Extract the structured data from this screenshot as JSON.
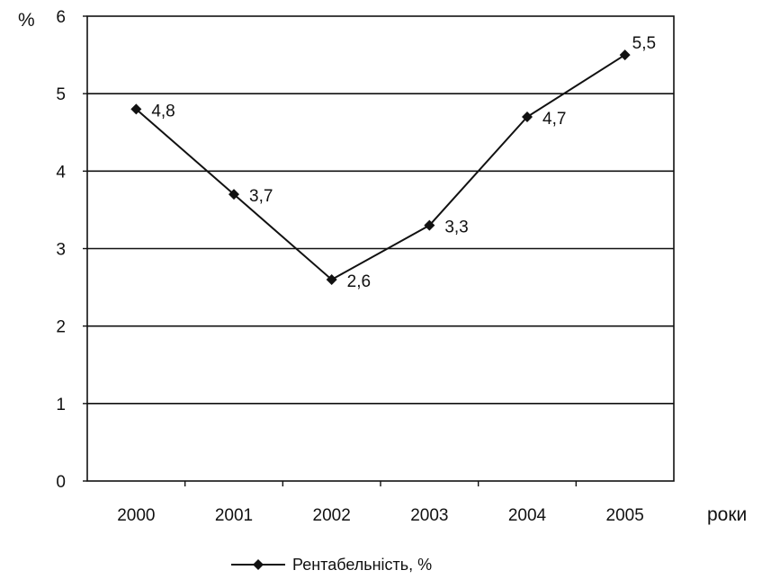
{
  "chart_data": {
    "type": "line",
    "categories": [
      "2000",
      "2001",
      "2002",
      "2003",
      "2004",
      "2005"
    ],
    "series": [
      {
        "name": "Рентабельність, %",
        "values": [
          4.8,
          3.7,
          2.6,
          3.3,
          4.7,
          5.5
        ],
        "data_labels": [
          "4,8",
          "3,7",
          "2,6",
          "3,3",
          "4,7",
          "5,5"
        ],
        "color": "#111111",
        "marker": "diamond"
      }
    ],
    "y_ticks": [
      "0",
      "1",
      "2",
      "3",
      "4",
      "5",
      "6"
    ],
    "ylim": [
      0,
      6
    ],
    "y_unit_label": "%",
    "x_unit_label": "роки",
    "grid": "horizontal",
    "legend_position": "bottom",
    "title": "",
    "xlabel": "роки",
    "ylabel": "%"
  }
}
